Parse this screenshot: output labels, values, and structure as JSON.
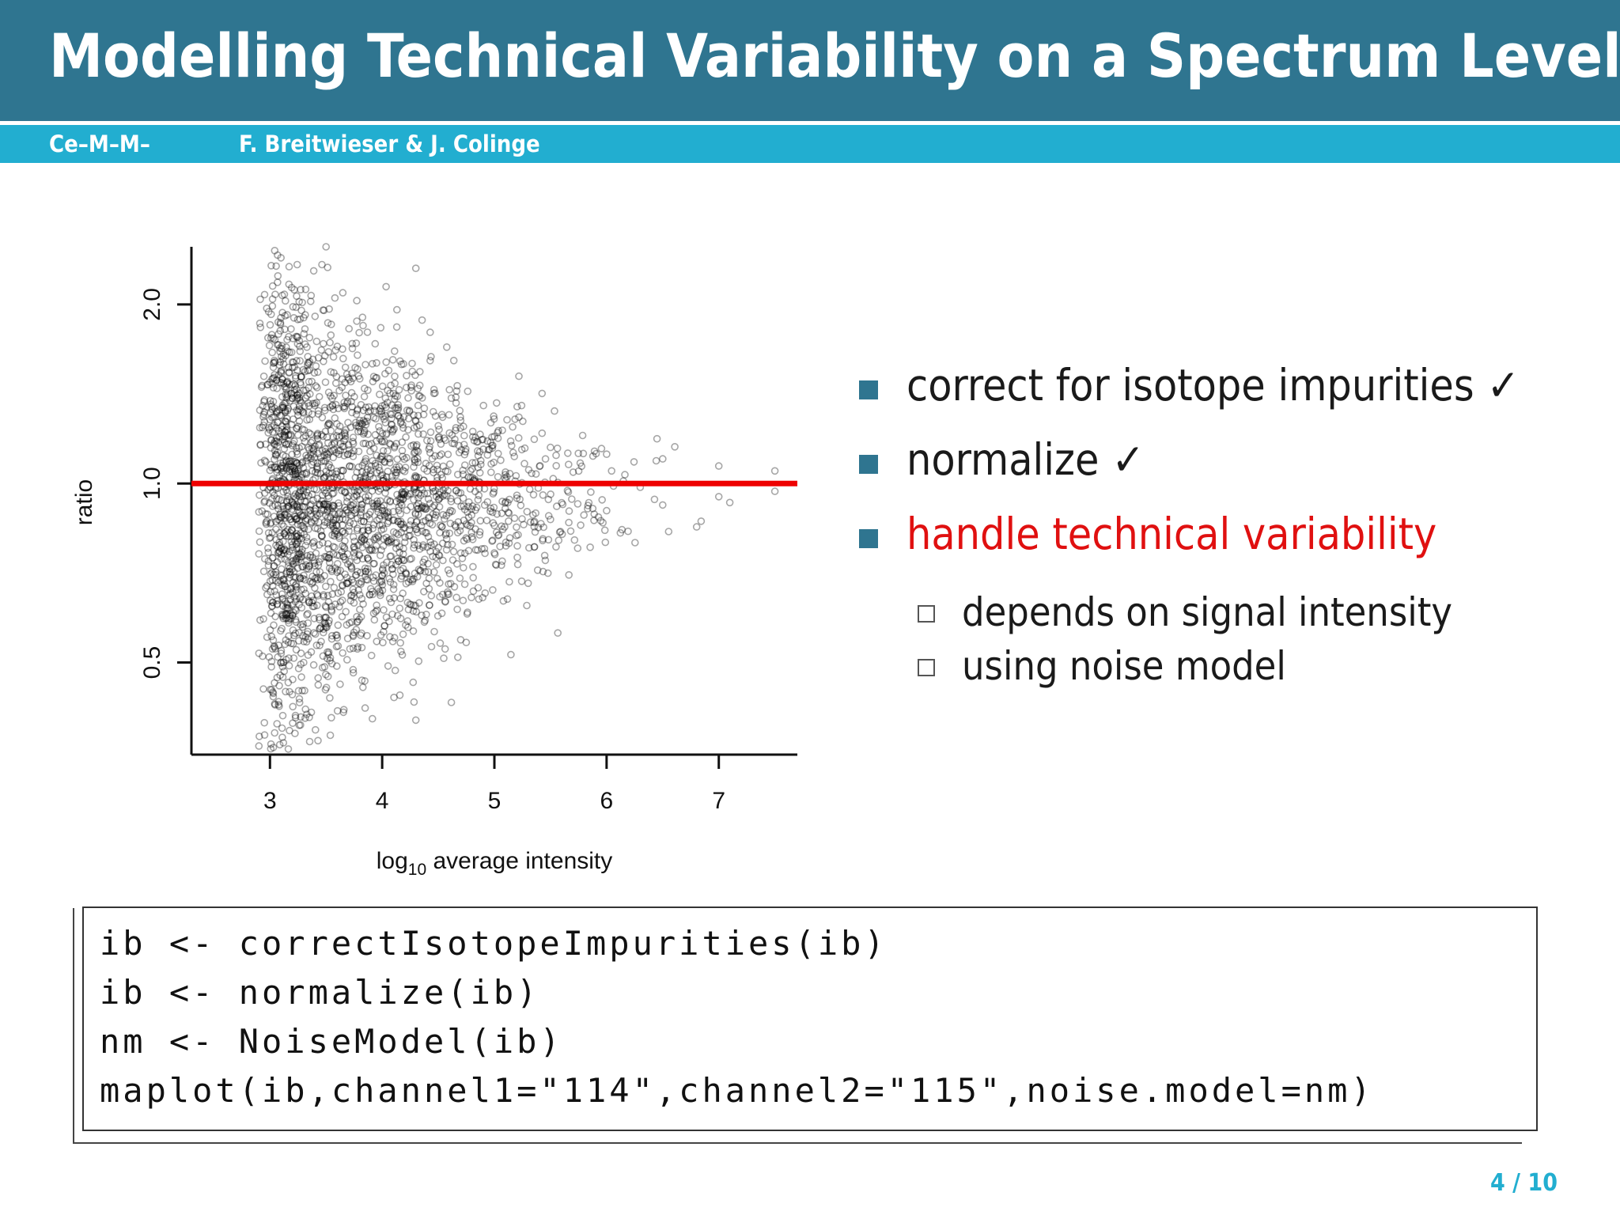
{
  "header": {
    "title": "Modelling Technical Variability on a Spectrum Level",
    "short_title": "Ce–M–M–",
    "authors": "F. Breitwieser & J. Colinge"
  },
  "chart_data": {
    "type": "scatter",
    "xlabel_main": "log",
    "xlabel_sub": "10",
    "xlabel_rest": " average intensity",
    "ylabel": "ratio",
    "x_ticks": [
      3,
      4,
      5,
      6,
      7
    ],
    "x_tick_labels": [
      "3",
      "4",
      "5",
      "6",
      "7"
    ],
    "y_ticks": [
      0.5,
      1.0,
      2.0
    ],
    "y_tick_labels": [
      "0.5",
      "1.0",
      "2.0"
    ],
    "y_scale": "log",
    "xlim": [
      2.3,
      7.7
    ],
    "ylim": [
      0.35,
      2.5
    ],
    "reference_line": {
      "y": 1.0,
      "color": "#ee0000"
    },
    "point_color": "#000000",
    "points": [
      [
        3.0,
        1.0
      ],
      [
        3.1,
        1.3
      ],
      [
        3.1,
        0.7
      ],
      [
        3.2,
        1.6
      ],
      [
        3.2,
        0.6
      ],
      [
        3.3,
        1.9
      ],
      [
        3.3,
        0.5
      ],
      [
        3.5,
        2.5
      ],
      [
        3.6,
        1.7
      ],
      [
        3.6,
        0.55
      ],
      [
        3.8,
        1.5
      ],
      [
        3.8,
        0.65
      ],
      [
        4.0,
        1.35
      ],
      [
        4.0,
        0.7
      ],
      [
        4.3,
        2.3
      ],
      [
        4.3,
        0.4
      ],
      [
        4.5,
        1.25
      ],
      [
        4.5,
        0.78
      ],
      [
        5.0,
        1.2
      ],
      [
        5.0,
        0.85
      ],
      [
        5.5,
        1.15
      ],
      [
        5.5,
        0.87
      ],
      [
        6.0,
        1.12
      ],
      [
        6.0,
        0.9
      ],
      [
        6.5,
        1.1
      ],
      [
        6.5,
        0.92
      ],
      [
        7.0,
        1.07
      ],
      [
        7.0,
        0.95
      ],
      [
        7.5,
        1.05
      ],
      [
        7.5,
        0.97
      ]
    ]
  },
  "bullets": [
    {
      "text": "correct for isotope impurities",
      "check": "✓"
    },
    {
      "text": "normalize",
      "check": "✓"
    },
    {
      "text": "handle technical variability",
      "check": ""
    }
  ],
  "sub_bullets": [
    {
      "text": "depends on signal intensity"
    },
    {
      "text": "using noise model"
    }
  ],
  "code_lines": [
    "ib <- correctIsotopeImpurities(ib)",
    "ib <- normalize(ib)",
    "nm <- NoiseModel(ib)",
    "maplot(ib,channel1=\"114\",channel2=\"115\",noise.model=nm)"
  ],
  "footer": {
    "page": "4 / 10"
  },
  "colors": {
    "title_bar": "#2f7590",
    "info_bar": "#22aed0",
    "highlight": "#e01010"
  }
}
